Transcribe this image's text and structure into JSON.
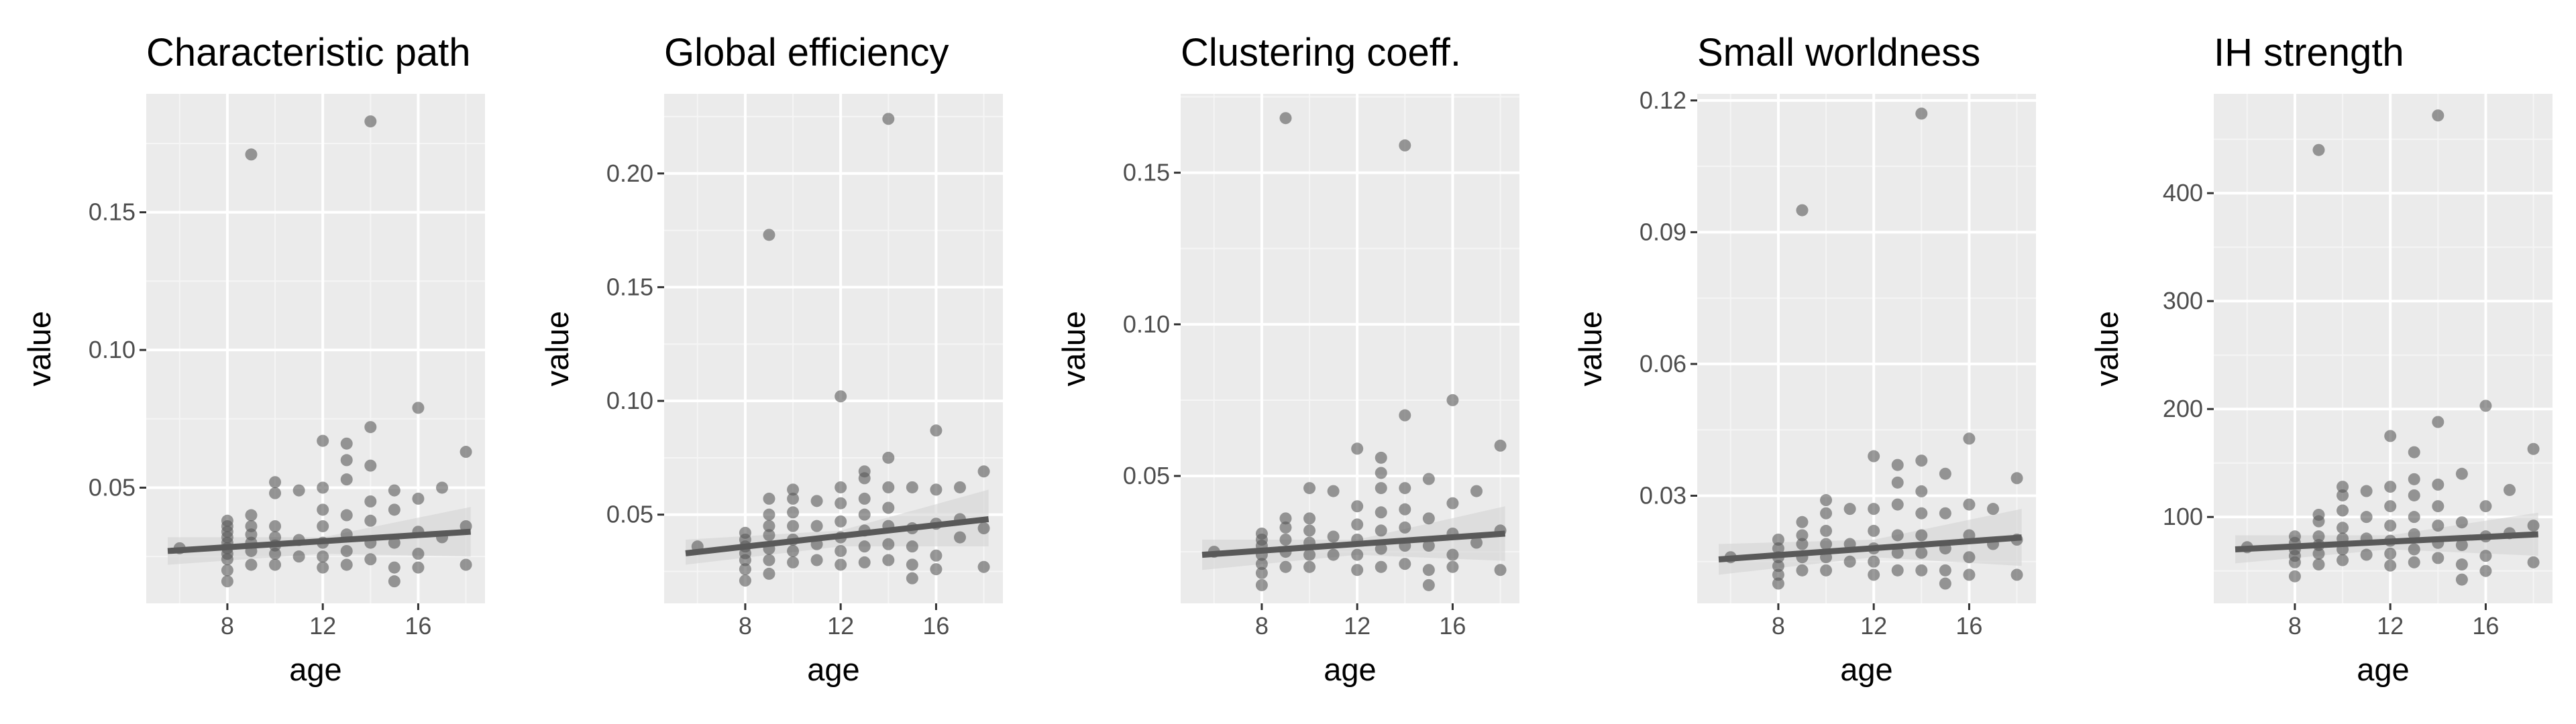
{
  "figure": {
    "background": "#ffffff",
    "panel_background": "#ebebeb",
    "grid_major": "#ffffff",
    "grid_minor": "#f5f5f5",
    "point_color": "#595959",
    "line_color": "#595959",
    "ribbon_color": "#d4d4d4"
  },
  "chart_data": [
    {
      "type": "scatter",
      "title": "Characteristic path",
      "xlabel": "age",
      "ylabel": "value",
      "xlim": [
        4.6,
        18.8
      ],
      "ylim": [
        0.008,
        0.193
      ],
      "xticks": [
        8,
        12,
        16
      ],
      "yticks": [
        0.05,
        0.1,
        0.15
      ],
      "yticklabels": [
        "0.05",
        "0.10",
        "0.15"
      ],
      "grid": true,
      "points": [
        [
          6,
          0.028
        ],
        [
          8,
          0.016
        ],
        [
          8,
          0.02
        ],
        [
          8,
          0.024
        ],
        [
          8,
          0.026
        ],
        [
          8,
          0.028
        ],
        [
          8,
          0.03
        ],
        [
          8,
          0.032
        ],
        [
          8,
          0.034
        ],
        [
          8,
          0.036
        ],
        [
          8,
          0.038
        ],
        [
          9,
          0.171
        ],
        [
          9,
          0.022
        ],
        [
          9,
          0.027
        ],
        [
          9,
          0.03
        ],
        [
          9,
          0.033
        ],
        [
          9,
          0.036
        ],
        [
          9,
          0.04
        ],
        [
          10,
          0.022
        ],
        [
          10,
          0.026
        ],
        [
          10,
          0.029
        ],
        [
          10,
          0.032
        ],
        [
          10,
          0.036
        ],
        [
          10,
          0.048
        ],
        [
          10,
          0.052
        ],
        [
          11,
          0.025
        ],
        [
          11,
          0.031
        ],
        [
          11,
          0.049
        ],
        [
          12,
          0.021
        ],
        [
          12,
          0.025
        ],
        [
          12,
          0.03
        ],
        [
          12,
          0.036
        ],
        [
          12,
          0.042
        ],
        [
          12,
          0.05
        ],
        [
          12,
          0.067
        ],
        [
          13,
          0.022
        ],
        [
          13,
          0.027
        ],
        [
          13,
          0.033
        ],
        [
          13,
          0.04
        ],
        [
          13,
          0.053
        ],
        [
          13,
          0.06
        ],
        [
          13,
          0.066
        ],
        [
          14,
          0.183
        ],
        [
          14,
          0.024
        ],
        [
          14,
          0.03
        ],
        [
          14,
          0.038
        ],
        [
          14,
          0.045
        ],
        [
          14,
          0.058
        ],
        [
          14,
          0.072
        ],
        [
          15,
          0.016
        ],
        [
          15,
          0.021
        ],
        [
          15,
          0.03
        ],
        [
          15,
          0.042
        ],
        [
          15,
          0.049
        ],
        [
          16,
          0.021
        ],
        [
          16,
          0.026
        ],
        [
          16,
          0.034
        ],
        [
          16,
          0.046
        ],
        [
          16,
          0.079
        ],
        [
          17,
          0.032
        ],
        [
          17,
          0.05
        ],
        [
          18,
          0.022
        ],
        [
          18,
          0.036
        ],
        [
          18,
          0.063
        ]
      ],
      "fit_line": [
        [
          5.5,
          0.027
        ],
        [
          18.2,
          0.034
        ]
      ],
      "confidence_band": {
        "x": [
          5.5,
          12,
          18.2
        ],
        "lower": [
          0.022,
          0.026,
          0.025
        ],
        "upper": [
          0.032,
          0.032,
          0.043
        ]
      }
    },
    {
      "type": "scatter",
      "title": "Global efficiency",
      "xlabel": "age",
      "ylabel": "value",
      "xlim": [
        4.6,
        18.8
      ],
      "ylim": [
        0.011,
        0.235
      ],
      "xticks": [
        8,
        12,
        16
      ],
      "yticks": [
        0.05,
        0.1,
        0.15,
        0.2
      ],
      "yticklabels": [
        "0.05",
        "0.10",
        "0.15",
        "0.20"
      ],
      "grid": true,
      "points": [
        [
          6,
          0.036
        ],
        [
          8,
          0.021
        ],
        [
          8,
          0.026
        ],
        [
          8,
          0.03
        ],
        [
          8,
          0.033
        ],
        [
          8,
          0.036
        ],
        [
          8,
          0.039
        ],
        [
          8,
          0.042
        ],
        [
          9,
          0.173
        ],
        [
          9,
          0.024
        ],
        [
          9,
          0.03
        ],
        [
          9,
          0.035
        ],
        [
          9,
          0.041
        ],
        [
          9,
          0.045
        ],
        [
          9,
          0.05
        ],
        [
          9,
          0.057
        ],
        [
          10,
          0.029
        ],
        [
          10,
          0.034
        ],
        [
          10,
          0.039
        ],
        [
          10,
          0.045
        ],
        [
          10,
          0.051
        ],
        [
          10,
          0.057
        ],
        [
          10,
          0.061
        ],
        [
          11,
          0.03
        ],
        [
          11,
          0.037
        ],
        [
          11,
          0.045
        ],
        [
          11,
          0.056
        ],
        [
          12,
          0.102
        ],
        [
          12,
          0.028
        ],
        [
          12,
          0.034
        ],
        [
          12,
          0.04
        ],
        [
          12,
          0.047
        ],
        [
          12,
          0.055
        ],
        [
          12,
          0.062
        ],
        [
          13,
          0.029
        ],
        [
          13,
          0.036
        ],
        [
          13,
          0.043
        ],
        [
          13,
          0.05
        ],
        [
          13,
          0.057
        ],
        [
          13,
          0.066
        ],
        [
          13,
          0.069
        ],
        [
          14,
          0.224
        ],
        [
          14,
          0.03
        ],
        [
          14,
          0.037
        ],
        [
          14,
          0.045
        ],
        [
          14,
          0.053
        ],
        [
          14,
          0.062
        ],
        [
          14,
          0.075
        ],
        [
          15,
          0.022
        ],
        [
          15,
          0.028
        ],
        [
          15,
          0.036
        ],
        [
          15,
          0.044
        ],
        [
          15,
          0.062
        ],
        [
          16,
          0.026
        ],
        [
          16,
          0.032
        ],
        [
          16,
          0.046
        ],
        [
          16,
          0.061
        ],
        [
          16,
          0.087
        ],
        [
          17,
          0.04
        ],
        [
          17,
          0.048
        ],
        [
          17,
          0.062
        ],
        [
          18,
          0.027
        ],
        [
          18,
          0.044
        ],
        [
          18,
          0.069
        ]
      ],
      "fit_line": [
        [
          5.5,
          0.033
        ],
        [
          18.2,
          0.048
        ]
      ],
      "confidence_band": {
        "x": [
          5.5,
          12,
          18.2
        ],
        "lower": [
          0.028,
          0.036,
          0.036
        ],
        "upper": [
          0.039,
          0.043,
          0.061
        ]
      }
    },
    {
      "type": "scatter",
      "title": "Clustering coeff.",
      "xlabel": "age",
      "ylabel": "value",
      "xlim": [
        4.6,
        18.8
      ],
      "ylim": [
        0.008,
        0.176
      ],
      "xticks": [
        8,
        12,
        16
      ],
      "yticks": [
        0.05,
        0.1,
        0.15
      ],
      "yticklabels": [
        "0.05",
        "0.10",
        "0.15"
      ],
      "grid": true,
      "points": [
        [
          6,
          0.025
        ],
        [
          8,
          0.014
        ],
        [
          8,
          0.018
        ],
        [
          8,
          0.021
        ],
        [
          8,
          0.024
        ],
        [
          8,
          0.027
        ],
        [
          8,
          0.029
        ],
        [
          8,
          0.031
        ],
        [
          9,
          0.168
        ],
        [
          9,
          0.02
        ],
        [
          9,
          0.025
        ],
        [
          9,
          0.029
        ],
        [
          9,
          0.033
        ],
        [
          9,
          0.036
        ],
        [
          10,
          0.02
        ],
        [
          10,
          0.024
        ],
        [
          10,
          0.028
        ],
        [
          10,
          0.032
        ],
        [
          10,
          0.036
        ],
        [
          10,
          0.046
        ],
        [
          11,
          0.024
        ],
        [
          11,
          0.03
        ],
        [
          11,
          0.045
        ],
        [
          12,
          0.019
        ],
        [
          12,
          0.024
        ],
        [
          12,
          0.029
        ],
        [
          12,
          0.034
        ],
        [
          12,
          0.04
        ],
        [
          12,
          0.059
        ],
        [
          13,
          0.02
        ],
        [
          13,
          0.026
        ],
        [
          13,
          0.032
        ],
        [
          13,
          0.038
        ],
        [
          13,
          0.046
        ],
        [
          13,
          0.051
        ],
        [
          13,
          0.056
        ],
        [
          14,
          0.159
        ],
        [
          14,
          0.021
        ],
        [
          14,
          0.027
        ],
        [
          14,
          0.033
        ],
        [
          14,
          0.039
        ],
        [
          14,
          0.046
        ],
        [
          14,
          0.07
        ],
        [
          15,
          0.014
        ],
        [
          15,
          0.019
        ],
        [
          15,
          0.027
        ],
        [
          15,
          0.036
        ],
        [
          15,
          0.049
        ],
        [
          16,
          0.02
        ],
        [
          16,
          0.024
        ],
        [
          16,
          0.031
        ],
        [
          16,
          0.041
        ],
        [
          16,
          0.075
        ],
        [
          17,
          0.028
        ],
        [
          17,
          0.045
        ],
        [
          18,
          0.019
        ],
        [
          18,
          0.032
        ],
        [
          18,
          0.06
        ]
      ],
      "fit_line": [
        [
          5.5,
          0.024
        ],
        [
          18.2,
          0.031
        ]
      ],
      "confidence_band": {
        "x": [
          5.5,
          12,
          18.2
        ],
        "lower": [
          0.019,
          0.024,
          0.022
        ],
        "upper": [
          0.029,
          0.029,
          0.04
        ]
      }
    },
    {
      "type": "scatter",
      "title": "Small worldness",
      "xlabel": "age",
      "ylabel": "value",
      "xlim": [
        4.6,
        18.8
      ],
      "ylim": [
        0.0055,
        0.1215
      ],
      "xticks": [
        8,
        12,
        16
      ],
      "yticks": [
        0.03,
        0.06,
        0.09,
        0.12
      ],
      "yticklabels": [
        "0.03",
        "0.06",
        "0.09",
        "0.12"
      ],
      "grid": true,
      "points": [
        [
          6,
          0.016
        ],
        [
          8,
          0.01
        ],
        [
          8,
          0.012
        ],
        [
          8,
          0.014
        ],
        [
          8,
          0.016
        ],
        [
          8,
          0.018
        ],
        [
          8,
          0.02
        ],
        [
          9,
          0.095
        ],
        [
          9,
          0.013
        ],
        [
          9,
          0.016
        ],
        [
          9,
          0.019
        ],
        [
          9,
          0.021
        ],
        [
          9,
          0.024
        ],
        [
          10,
          0.013
        ],
        [
          10,
          0.016
        ],
        [
          10,
          0.019
        ],
        [
          10,
          0.022
        ],
        [
          10,
          0.026
        ],
        [
          10,
          0.029
        ],
        [
          11,
          0.015
        ],
        [
          11,
          0.019
        ],
        [
          11,
          0.027
        ],
        [
          12,
          0.012
        ],
        [
          12,
          0.015
        ],
        [
          12,
          0.018
        ],
        [
          12,
          0.022
        ],
        [
          12,
          0.027
        ],
        [
          12,
          0.039
        ],
        [
          13,
          0.013
        ],
        [
          13,
          0.017
        ],
        [
          13,
          0.021
        ],
        [
          13,
          0.028
        ],
        [
          13,
          0.033
        ],
        [
          13,
          0.037
        ],
        [
          14,
          0.117
        ],
        [
          14,
          0.013
        ],
        [
          14,
          0.017
        ],
        [
          14,
          0.021
        ],
        [
          14,
          0.026
        ],
        [
          14,
          0.031
        ],
        [
          14,
          0.038
        ],
        [
          15,
          0.01
        ],
        [
          15,
          0.013
        ],
        [
          15,
          0.018
        ],
        [
          15,
          0.026
        ],
        [
          15,
          0.035
        ],
        [
          16,
          0.012
        ],
        [
          16,
          0.016
        ],
        [
          16,
          0.021
        ],
        [
          16,
          0.028
        ],
        [
          16,
          0.043
        ],
        [
          17,
          0.019
        ],
        [
          17,
          0.027
        ],
        [
          18,
          0.012
        ],
        [
          18,
          0.02
        ],
        [
          18,
          0.034
        ]
      ],
      "fit_line": [
        [
          5.5,
          0.0155
        ],
        [
          18.2,
          0.0205
        ]
      ],
      "confidence_band": {
        "x": [
          5.5,
          12,
          18.2
        ],
        "lower": [
          0.012,
          0.016,
          0.014
        ],
        "upper": [
          0.019,
          0.02,
          0.027
        ]
      }
    },
    {
      "type": "scatter",
      "title": "IH strength",
      "xlabel": "age",
      "ylabel": "value",
      "xlim": [
        4.6,
        18.8
      ],
      "ylim": [
        20,
        492
      ],
      "xticks": [
        8,
        12,
        16
      ],
      "yticks": [
        100,
        200,
        300,
        400
      ],
      "yticklabels": [
        "100",
        "200",
        "300",
        "400"
      ],
      "grid": true,
      "points": [
        [
          6,
          72
        ],
        [
          8,
          45
        ],
        [
          8,
          58
        ],
        [
          8,
          64
        ],
        [
          8,
          70
        ],
        [
          8,
          76
        ],
        [
          8,
          82
        ],
        [
          9,
          440
        ],
        [
          9,
          56
        ],
        [
          9,
          66
        ],
        [
          9,
          74
        ],
        [
          9,
          82
        ],
        [
          9,
          96
        ],
        [
          9,
          102
        ],
        [
          10,
          60
        ],
        [
          10,
          70
        ],
        [
          10,
          80
        ],
        [
          10,
          90
        ],
        [
          10,
          106
        ],
        [
          10,
          120
        ],
        [
          10,
          128
        ],
        [
          11,
          65
        ],
        [
          11,
          80
        ],
        [
          11,
          100
        ],
        [
          11,
          124
        ],
        [
          12,
          55
        ],
        [
          12,
          66
        ],
        [
          12,
          78
        ],
        [
          12,
          92
        ],
        [
          12,
          110
        ],
        [
          12,
          128
        ],
        [
          12,
          175
        ],
        [
          13,
          58
        ],
        [
          13,
          70
        ],
        [
          13,
          84
        ],
        [
          13,
          100
        ],
        [
          13,
          120
        ],
        [
          13,
          135
        ],
        [
          13,
          160
        ],
        [
          14,
          472
        ],
        [
          14,
          62
        ],
        [
          14,
          76
        ],
        [
          14,
          92
        ],
        [
          14,
          110
        ],
        [
          14,
          130
        ],
        [
          14,
          188
        ],
        [
          15,
          42
        ],
        [
          15,
          56
        ],
        [
          15,
          74
        ],
        [
          15,
          95
        ],
        [
          15,
          140
        ],
        [
          16,
          50
        ],
        [
          16,
          64
        ],
        [
          16,
          82
        ],
        [
          16,
          110
        ],
        [
          16,
          203
        ],
        [
          17,
          85
        ],
        [
          17,
          125
        ],
        [
          18,
          58
        ],
        [
          18,
          92
        ],
        [
          18,
          163
        ]
      ],
      "fit_line": [
        [
          5.5,
          70
        ],
        [
          18.2,
          84
        ]
      ],
      "confidence_band": {
        "x": [
          5.5,
          12,
          18.2
        ],
        "lower": [
          57,
          70,
          64
        ],
        "upper": [
          83,
          83,
          104
        ]
      }
    }
  ]
}
